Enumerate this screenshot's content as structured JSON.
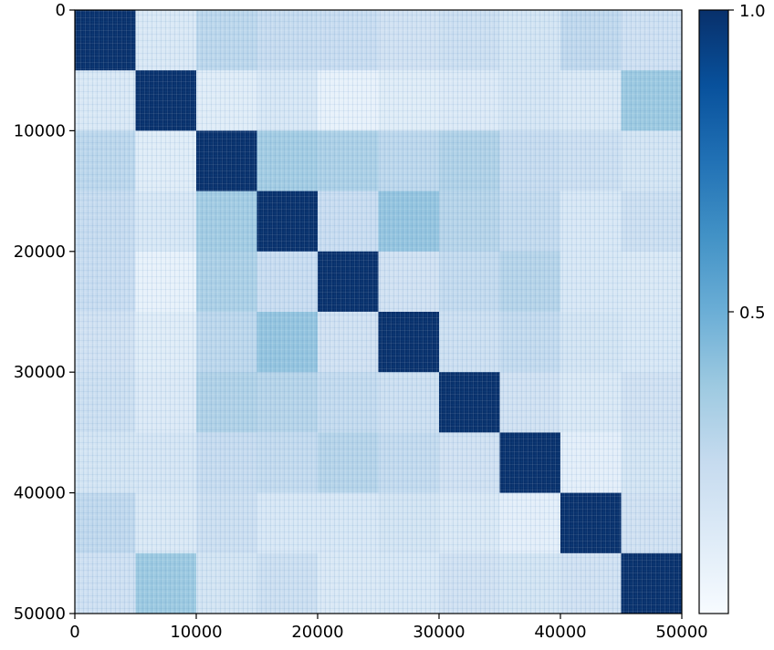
{
  "chart_data": {
    "type": "heatmap",
    "title": "",
    "xlabel": "",
    "ylabel": "",
    "x_range": [
      0,
      50000
    ],
    "y_range": [
      0,
      50000
    ],
    "y_axis_inverted": true,
    "x_ticks": [
      "0",
      "10000",
      "20000",
      "30000",
      "40000",
      "50000"
    ],
    "y_ticks": [
      "0",
      "10000",
      "20000",
      "30000",
      "40000",
      "50000"
    ],
    "block_size": 5000,
    "num_blocks": 10,
    "grid": false,
    "colormap": "Blues",
    "colorbar": {
      "placement": "right",
      "range": [
        0.0,
        1.0
      ],
      "ticks": [
        "0.5",
        "1.0"
      ]
    },
    "block_values": [
      [
        1.0,
        0.15,
        0.28,
        0.25,
        0.24,
        0.2,
        0.22,
        0.18,
        0.27,
        0.21
      ],
      [
        0.15,
        1.0,
        0.12,
        0.16,
        0.08,
        0.12,
        0.14,
        0.17,
        0.15,
        0.38
      ],
      [
        0.28,
        0.12,
        1.0,
        0.36,
        0.33,
        0.28,
        0.32,
        0.25,
        0.22,
        0.18
      ],
      [
        0.25,
        0.16,
        0.36,
        1.0,
        0.24,
        0.4,
        0.3,
        0.26,
        0.16,
        0.22
      ],
      [
        0.24,
        0.08,
        0.33,
        0.24,
        1.0,
        0.2,
        0.26,
        0.3,
        0.16,
        0.15
      ],
      [
        0.2,
        0.12,
        0.28,
        0.4,
        0.2,
        1.0,
        0.22,
        0.26,
        0.18,
        0.16
      ],
      [
        0.22,
        0.14,
        0.32,
        0.3,
        0.26,
        0.22,
        1.0,
        0.2,
        0.15,
        0.2
      ],
      [
        0.18,
        0.17,
        0.25,
        0.26,
        0.3,
        0.26,
        0.2,
        1.0,
        0.1,
        0.18
      ],
      [
        0.27,
        0.15,
        0.22,
        0.16,
        0.16,
        0.18,
        0.15,
        0.1,
        1.0,
        0.2
      ],
      [
        0.21,
        0.38,
        0.18,
        0.22,
        0.15,
        0.16,
        0.2,
        0.18,
        0.2,
        1.0
      ]
    ],
    "colors": {
      "low": "#f7fbff",
      "mid": "#6aaed6",
      "high": "#08306b"
    }
  }
}
